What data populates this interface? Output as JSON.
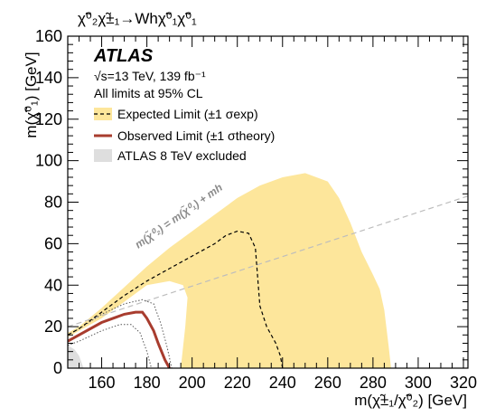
{
  "chart_data": {
    "type": "area",
    "process_label": "χ̃⁰₂χ̃±₁→Whχ̃⁰₁χ̃⁰₁",
    "xlabel": "m(χ̃±₁/χ̃⁰₂) [GeV]",
    "ylabel": "m(χ̃⁰₁) [GeV]",
    "xlim": [
      145,
      322
    ],
    "ylim": [
      0,
      160
    ],
    "x_ticks": [
      160,
      180,
      200,
      220,
      240,
      260,
      280,
      300,
      320
    ],
    "y_ticks": [
      0,
      20,
      40,
      60,
      80,
      100,
      120,
      140,
      160
    ],
    "experiment": "ATLAS",
    "energy_lumi": "√s=13 TeV, 139 fb⁻¹",
    "cl_note": "All limits at 95% CL",
    "legend_position": "top-left",
    "legend": [
      {
        "key": "expected",
        "label": "Expected Limit (±1 σexp)"
      },
      {
        "key": "observed",
        "label": "Observed Limit (±1 σtheory)"
      },
      {
        "key": "run1",
        "label": "ATLAS 8 TeV excluded"
      }
    ],
    "diagonal_label": "m(χ̃⁰₂) = m(χ̃⁰₁) + mh",
    "diagonal_offset_gev": 125,
    "series": [
      {
        "name": "Expected Limit",
        "type": "line",
        "points": [
          [
            145,
            16
          ],
          [
            150,
            19
          ],
          [
            160,
            27
          ],
          [
            170,
            35
          ],
          [
            180,
            42
          ],
          [
            190,
            48
          ],
          [
            200,
            54
          ],
          [
            210,
            60
          ],
          [
            215,
            64
          ],
          [
            220,
            66
          ],
          [
            225,
            65
          ],
          [
            228,
            58
          ],
          [
            229,
            44
          ],
          [
            230,
            30
          ],
          [
            233,
            20
          ],
          [
            237,
            12
          ],
          [
            239,
            6
          ],
          [
            240,
            0
          ]
        ]
      },
      {
        "name": "±1 σexp band",
        "type": "band",
        "outer": [
          [
            145,
            17
          ],
          [
            150,
            20
          ],
          [
            160,
            29
          ],
          [
            170,
            39
          ],
          [
            180,
            49
          ],
          [
            190,
            58
          ],
          [
            200,
            66
          ],
          [
            210,
            74
          ],
          [
            220,
            82
          ],
          [
            230,
            88
          ],
          [
            240,
            92
          ],
          [
            250,
            94
          ],
          [
            260,
            90
          ],
          [
            265,
            82
          ],
          [
            270,
            70
          ],
          [
            275,
            56
          ],
          [
            280,
            45
          ],
          [
            283,
            38
          ],
          [
            285,
            28
          ],
          [
            287,
            10
          ],
          [
            288,
            0
          ]
        ],
        "inner": [
          [
            195,
            0
          ],
          [
            197,
            20
          ],
          [
            198,
            34
          ],
          [
            196,
            40
          ],
          [
            190,
            42
          ],
          [
            180,
            40
          ],
          [
            170,
            32
          ],
          [
            160,
            24
          ],
          [
            150,
            18
          ],
          [
            145,
            15
          ]
        ]
      },
      {
        "name": "Observed Limit",
        "type": "line",
        "points": [
          [
            145,
            13
          ],
          [
            150,
            16
          ],
          [
            160,
            22
          ],
          [
            170,
            26
          ],
          [
            175,
            27
          ],
          [
            178,
            27
          ],
          [
            180,
            24
          ],
          [
            183,
            18
          ],
          [
            185,
            12
          ],
          [
            188,
            4
          ],
          [
            190,
            0
          ]
        ]
      },
      {
        "name": "Observed +1 σtheory",
        "type": "line",
        "points": [
          [
            145,
            16
          ],
          [
            150,
            19
          ],
          [
            160,
            26
          ],
          [
            170,
            31
          ],
          [
            178,
            33
          ],
          [
            183,
            31
          ],
          [
            186,
            22
          ],
          [
            189,
            10
          ],
          [
            191,
            0
          ]
        ]
      },
      {
        "name": "Observed -1 σtheory",
        "type": "line",
        "points": [
          [
            145,
            11
          ],
          [
            150,
            13
          ],
          [
            160,
            18
          ],
          [
            168,
            21
          ],
          [
            173,
            21
          ],
          [
            177,
            17
          ],
          [
            180,
            8
          ],
          [
            182,
            0
          ]
        ]
      }
    ],
    "run1_excluded": [
      [
        145,
        0
      ],
      [
        145,
        11
      ],
      [
        148,
        9
      ],
      [
        150,
        6
      ],
      [
        151,
        3
      ],
      [
        152,
        0
      ]
    ]
  },
  "colors": {
    "band": "#fde69b",
    "expected_line": "#000000",
    "observed": "#a83c2e",
    "run1": "#dedede",
    "diagonal": "#bdbdbd",
    "diagonal_text": "#8a8a8a"
  }
}
